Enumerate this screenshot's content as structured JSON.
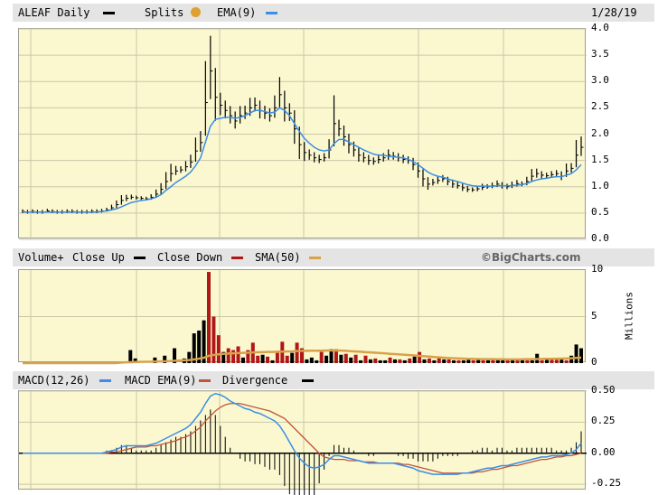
{
  "header": {
    "symbol_label": "ALEAF Daily",
    "splits_label": "Splits",
    "ema_label": "EMA(9)",
    "date": "1/28/19"
  },
  "volume_header": {
    "volume_label": "Volume+",
    "close_up_label": "Close Up",
    "close_down_label": "Close Down",
    "sma_label": "SMA(50)",
    "watermark": "©BigCharts.com"
  },
  "macd_header": {
    "macd_label": "MACD(12,26)",
    "macd_ema_label": "MACD EMA(9)",
    "divergence_label": "Divergence"
  },
  "colors": {
    "price_bar": "#000000",
    "ema": "#3a8ee6",
    "vol_up": "#000000",
    "vol_down": "#b01818",
    "sma": "#d9a14a",
    "macd": "#3a8ee6",
    "macd_ema": "#c0553a",
    "divergence": "#000000"
  },
  "chart_data": [
    {
      "type": "line",
      "name": "price",
      "ylim": [
        0,
        4
      ],
      "yticks": [
        "0.0",
        "0.5",
        "1.0",
        "1.5",
        "2.0",
        "2.5",
        "3.0",
        "3.5",
        "4.0"
      ],
      "grid": true,
      "series": [
        {
          "name": "ALEAF Daily",
          "values": [
            0.53,
            0.52,
            0.53,
            0.52,
            0.52,
            0.54,
            0.53,
            0.52,
            0.52,
            0.53,
            0.53,
            0.52,
            0.52,
            0.52,
            0.53,
            0.53,
            0.54,
            0.56,
            0.6,
            0.66,
            0.74,
            0.78,
            0.8,
            0.79,
            0.78,
            0.77,
            0.8,
            0.86,
            0.95,
            1.1,
            1.25,
            1.3,
            1.32,
            1.38,
            1.47,
            1.68,
            1.84,
            2.6,
            3.2,
            2.7,
            2.55,
            2.45,
            2.35,
            2.25,
            2.35,
            2.4,
            2.5,
            2.55,
            2.45,
            2.4,
            2.35,
            2.5,
            2.75,
            2.5,
            2.4,
            2.1,
            1.8,
            1.65,
            1.6,
            1.55,
            1.52,
            1.55,
            1.7,
            2.2,
            2.1,
            1.95,
            1.8,
            1.7,
            1.6,
            1.55,
            1.5,
            1.48,
            1.52,
            1.55,
            1.6,
            1.58,
            1.55,
            1.52,
            1.5,
            1.42,
            1.3,
            1.15,
            1.05,
            1.08,
            1.12,
            1.15,
            1.1,
            1.05,
            1.02,
            0.98,
            0.95,
            0.94,
            0.96,
            0.99,
            1.0,
            1.02,
            1.05,
            1.02,
            1.0,
            1.03,
            1.06,
            1.05,
            1.1,
            1.2,
            1.25,
            1.22,
            1.21,
            1.23,
            1.25,
            1.2,
            1.3,
            1.35,
            1.6,
            1.75
          ]
        },
        {
          "name": "EMA(9)",
          "values": [
            0.52,
            0.52,
            0.52,
            0.52,
            0.52,
            0.52,
            0.52,
            0.52,
            0.52,
            0.52,
            0.52,
            0.52,
            0.52,
            0.52,
            0.52,
            0.52,
            0.53,
            0.54,
            0.56,
            0.58,
            0.62,
            0.66,
            0.7,
            0.72,
            0.74,
            0.75,
            0.77,
            0.8,
            0.85,
            0.93,
            1.0,
            1.08,
            1.14,
            1.2,
            1.28,
            1.4,
            1.55,
            1.85,
            2.15,
            2.28,
            2.3,
            2.32,
            2.32,
            2.3,
            2.32,
            2.35,
            2.4,
            2.45,
            2.45,
            2.43,
            2.4,
            2.42,
            2.5,
            2.45,
            2.35,
            2.2,
            2.05,
            1.92,
            1.83,
            1.75,
            1.7,
            1.68,
            1.7,
            1.82,
            1.9,
            1.9,
            1.85,
            1.8,
            1.75,
            1.7,
            1.66,
            1.62,
            1.6,
            1.6,
            1.58,
            1.57,
            1.56,
            1.55,
            1.52,
            1.48,
            1.42,
            1.35,
            1.28,
            1.23,
            1.2,
            1.18,
            1.15,
            1.12,
            1.1,
            1.07,
            1.04,
            1.02,
            1.01,
            1.01,
            1.01,
            1.01,
            1.02,
            1.02,
            1.02,
            1.02,
            1.03,
            1.04,
            1.06,
            1.1,
            1.13,
            1.15,
            1.16,
            1.18,
            1.19,
            1.19,
            1.22,
            1.25,
            1.32,
            1.42
          ]
        }
      ]
    },
    {
      "type": "bar",
      "name": "volume",
      "ylabel": "Millions",
      "ylim": [
        0,
        10
      ],
      "yticks": [
        "0",
        "5",
        "10"
      ],
      "up_values": [
        0,
        0,
        0,
        0,
        0,
        0,
        0,
        0,
        0,
        0,
        0,
        0,
        0,
        0,
        0,
        0,
        0,
        0,
        0,
        0,
        0,
        0,
        1.4,
        0.5,
        0,
        0,
        0,
        0.6,
        0,
        0.8,
        0,
        1.6,
        0,
        0.5,
        1.2,
        3.2,
        3.5,
        4.6,
        0,
        0,
        0,
        1.2,
        0,
        0,
        0,
        0.6,
        0,
        0,
        0,
        0.9,
        0,
        0.3,
        0,
        0,
        0,
        1.1,
        0,
        0,
        0.4,
        0.6,
        0.3,
        0,
        0.8,
        1.5,
        0,
        0.9,
        0,
        0.6,
        0,
        0.3,
        0,
        0.4,
        0,
        0.3,
        0.3,
        0,
        0.4,
        0,
        0.3,
        0,
        0.7,
        0,
        0.4,
        0,
        0.3,
        0,
        0.4,
        0,
        0.3,
        0,
        0.3,
        0.4,
        0,
        0.4,
        0,
        0.3,
        0,
        0.3,
        0.3,
        0,
        0.3,
        0,
        0.3,
        0,
        0.3,
        1.0,
        0,
        0.5,
        0,
        0,
        0.4,
        0,
        0.8,
        2.0,
        1.6
      ],
      "down_values": [
        0,
        0,
        0,
        0,
        0,
        0,
        0,
        0,
        0,
        0,
        0,
        0,
        0,
        0,
        0,
        0,
        0,
        0,
        0,
        0,
        0,
        0,
        0,
        0,
        0,
        0,
        0,
        0,
        0,
        0,
        0,
        0,
        0,
        0,
        0,
        0,
        0,
        0,
        9.8,
        5.0,
        3.0,
        0,
        1.6,
        1.4,
        1.8,
        0,
        1.4,
        2.2,
        0.8,
        0,
        0.7,
        0,
        1.1,
        2.3,
        0.8,
        0,
        2.2,
        1.6,
        0,
        0,
        0,
        1.2,
        0,
        0,
        1.5,
        0,
        1.0,
        0,
        0.9,
        0,
        0.8,
        0,
        0.5,
        0,
        0,
        0.6,
        0,
        0.4,
        0,
        0.5,
        0,
        1.2,
        0,
        0.5,
        0,
        0.6,
        0,
        0.4,
        0,
        0.3,
        0,
        0,
        0.3,
        0,
        0.3,
        0,
        0.4,
        0,
        0,
        0.3,
        0,
        0.3,
        0,
        0.3,
        0,
        0,
        0.3,
        0,
        0.4,
        0.4,
        0,
        0.3,
        0,
        0,
        0
      ],
      "sma_values": [
        0,
        0,
        0,
        0,
        0,
        0,
        0,
        0,
        0,
        0,
        0,
        0,
        0,
        0,
        0,
        0,
        0,
        0,
        0,
        0,
        0.05,
        0.08,
        0.1,
        0.12,
        0.13,
        0.14,
        0.15,
        0.17,
        0.18,
        0.2,
        0.22,
        0.26,
        0.28,
        0.3,
        0.33,
        0.4,
        0.48,
        0.58,
        0.78,
        0.88,
        0.95,
        1.0,
        1.03,
        1.06,
        1.08,
        1.1,
        1.12,
        1.15,
        1.16,
        1.18,
        1.2,
        1.2,
        1.22,
        1.24,
        1.25,
        1.26,
        1.3,
        1.32,
        1.32,
        1.33,
        1.34,
        1.34,
        1.35,
        1.36,
        1.36,
        1.35,
        1.32,
        1.28,
        1.25,
        1.22,
        1.18,
        1.15,
        1.12,
        1.08,
        1.05,
        1.0,
        0.97,
        0.94,
        0.9,
        0.86,
        0.82,
        0.78,
        0.74,
        0.7,
        0.66,
        0.62,
        0.58,
        0.55,
        0.52,
        0.5,
        0.48,
        0.46,
        0.45,
        0.44,
        0.43,
        0.42,
        0.42,
        0.41,
        0.41,
        0.4,
        0.4,
        0.4,
        0.41,
        0.42,
        0.43,
        0.44,
        0.45,
        0.46,
        0.46,
        0.47,
        0.48,
        0.5,
        0.52,
        0.56,
        0.6
      ]
    },
    {
      "type": "line",
      "name": "macd",
      "ylim": [
        -0.3,
        0.5
      ],
      "yticks": [
        "0.50",
        "0.25",
        "0.00",
        "-0.25"
      ],
      "series": [
        {
          "name": "MACD(12,26)",
          "values": [
            0,
            0,
            0,
            0,
            0,
            0,
            0,
            0,
            0,
            0,
            0,
            0,
            0,
            0,
            0,
            0,
            0,
            0.01,
            0.02,
            0.03,
            0.05,
            0.06,
            0.06,
            0.06,
            0.06,
            0.06,
            0.07,
            0.08,
            0.1,
            0.12,
            0.14,
            0.16,
            0.18,
            0.2,
            0.23,
            0.28,
            0.33,
            0.4,
            0.46,
            0.48,
            0.47,
            0.45,
            0.42,
            0.4,
            0.38,
            0.36,
            0.35,
            0.33,
            0.32,
            0.3,
            0.28,
            0.26,
            0.22,
            0.16,
            0.09,
            0.02,
            -0.04,
            -0.08,
            -0.11,
            -0.12,
            -0.11,
            -0.09,
            -0.05,
            -0.02,
            -0.02,
            -0.03,
            -0.04,
            -0.05,
            -0.06,
            -0.07,
            -0.08,
            -0.08,
            -0.08,
            -0.08,
            -0.08,
            -0.08,
            -0.09,
            -0.1,
            -0.11,
            -0.12,
            -0.14,
            -0.15,
            -0.16,
            -0.17,
            -0.17,
            -0.17,
            -0.17,
            -0.17,
            -0.17,
            -0.16,
            -0.16,
            -0.15,
            -0.14,
            -0.13,
            -0.12,
            -0.12,
            -0.11,
            -0.1,
            -0.1,
            -0.09,
            -0.08,
            -0.07,
            -0.06,
            -0.05,
            -0.04,
            -0.03,
            -0.03,
            -0.02,
            -0.02,
            -0.02,
            -0.01,
            0.0,
            0.03,
            0.08
          ]
        },
        {
          "name": "MACD EMA(9)",
          "values": [
            0,
            0,
            0,
            0,
            0,
            0,
            0,
            0,
            0,
            0,
            0,
            0,
            0,
            0,
            0,
            0,
            0,
            0,
            0.01,
            0.01,
            0.02,
            0.03,
            0.04,
            0.05,
            0.05,
            0.05,
            0.06,
            0.06,
            0.07,
            0.08,
            0.09,
            0.1,
            0.12,
            0.13,
            0.15,
            0.18,
            0.21,
            0.26,
            0.3,
            0.34,
            0.37,
            0.39,
            0.4,
            0.4,
            0.4,
            0.39,
            0.38,
            0.37,
            0.36,
            0.35,
            0.34,
            0.32,
            0.3,
            0.28,
            0.24,
            0.2,
            0.16,
            0.12,
            0.08,
            0.04,
            0.0,
            -0.03,
            -0.04,
            -0.05,
            -0.05,
            -0.05,
            -0.06,
            -0.06,
            -0.06,
            -0.07,
            -0.07,
            -0.07,
            -0.08,
            -0.08,
            -0.08,
            -0.08,
            -0.08,
            -0.09,
            -0.09,
            -0.1,
            -0.11,
            -0.12,
            -0.13,
            -0.14,
            -0.15,
            -0.16,
            -0.16,
            -0.16,
            -0.16,
            -0.16,
            -0.16,
            -0.16,
            -0.15,
            -0.15,
            -0.14,
            -0.13,
            -0.13,
            -0.12,
            -0.11,
            -0.1,
            -0.1,
            -0.09,
            -0.08,
            -0.07,
            -0.06,
            -0.05,
            -0.05,
            -0.04,
            -0.03,
            -0.03,
            -0.02,
            -0.02,
            -0.01,
            0.0
          ]
        }
      ]
    }
  ]
}
